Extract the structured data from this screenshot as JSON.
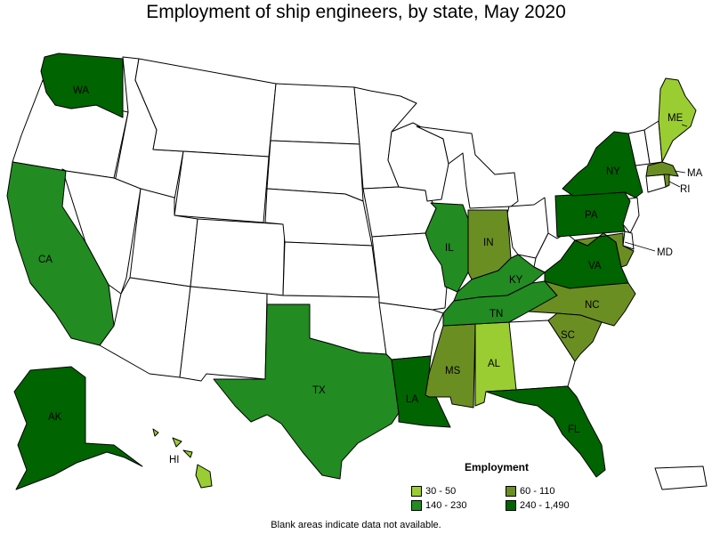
{
  "title": "Employment of ship engineers, by state, May 2020",
  "footnote": "Blank areas indicate data not available.",
  "legend": {
    "title": "Employment",
    "items": [
      {
        "label": "30 - 50",
        "color": "#9ACD32"
      },
      {
        "label": "60 - 110",
        "color": "#6B8E23"
      },
      {
        "label": "140 - 230",
        "color": "#228B22"
      },
      {
        "label": "240 - 1,490",
        "color": "#006400"
      }
    ]
  },
  "colors": {
    "no_data": "#FFFFFF",
    "border": "#000000"
  },
  "states": [
    {
      "code": "WA",
      "label": "WA",
      "range": "240 - 1,490"
    },
    {
      "code": "CA",
      "label": "CA",
      "range": "140 - 230"
    },
    {
      "code": "AK",
      "label": "AK",
      "range": "240 - 1,490"
    },
    {
      "code": "HI",
      "label": "HI",
      "range": "30 - 50"
    },
    {
      "code": "TX",
      "label": "TX",
      "range": "140 - 230"
    },
    {
      "code": "LA",
      "label": "LA",
      "range": "240 - 1,490"
    },
    {
      "code": "MS",
      "label": "MS",
      "range": "60 - 110"
    },
    {
      "code": "AL",
      "label": "AL",
      "range": "30 - 50"
    },
    {
      "code": "FL",
      "label": "FL",
      "range": "240 - 1,490"
    },
    {
      "code": "IL",
      "label": "IL",
      "range": "140 - 230"
    },
    {
      "code": "IN",
      "label": "IN",
      "range": "60 - 110"
    },
    {
      "code": "KY",
      "label": "KY",
      "range": "140 - 230"
    },
    {
      "code": "TN",
      "label": "TN",
      "range": "140 - 230"
    },
    {
      "code": "VA",
      "label": "VA",
      "range": "240 - 1,490"
    },
    {
      "code": "NC",
      "label": "NC",
      "range": "60 - 110"
    },
    {
      "code": "SC",
      "label": "SC",
      "range": "60 - 110"
    },
    {
      "code": "MD",
      "label": "MD",
      "range": "60 - 110"
    },
    {
      "code": "PA",
      "label": "PA",
      "range": "240 - 1,490"
    },
    {
      "code": "NY",
      "label": "NY",
      "range": "240 - 1,490"
    },
    {
      "code": "MA",
      "label": "MA",
      "range": "60 - 110"
    },
    {
      "code": "RI",
      "label": "RI",
      "range": "60 - 110"
    },
    {
      "code": "ME",
      "label": "ME",
      "range": "30 - 50"
    }
  ]
}
